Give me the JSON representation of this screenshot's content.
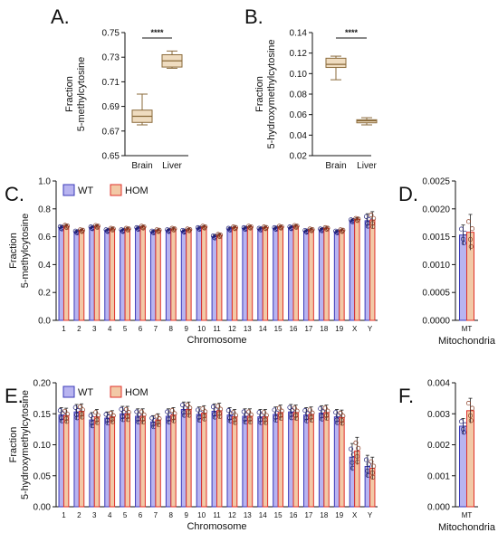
{
  "colors": {
    "wt_fill": "#b8b4f0",
    "wt_edge": "#3a3ab8",
    "hom_fill": "#f2c9a6",
    "hom_edge": "#e0302a",
    "box_fill": "#efdcc0",
    "box_edge": "#8a6a3a",
    "axis": "#111111"
  },
  "chart_data": [
    {
      "panel": "A.",
      "type": "box",
      "ylabel_lines": [
        "Fraction",
        "5-methylcytosine"
      ],
      "ylim": [
        0.65,
        0.75
      ],
      "yticks": [
        0.65,
        0.67,
        0.69,
        0.71,
        0.73,
        0.75
      ],
      "ytick_labels": [
        "0.65",
        "0.67",
        "0.69",
        "0.71",
        "0.73",
        "0.75"
      ],
      "categories": [
        "Brain",
        "Liver"
      ],
      "boxes": [
        {
          "min": 0.675,
          "q1": 0.677,
          "median": 0.682,
          "q3": 0.687,
          "max": 0.7
        },
        {
          "min": 0.721,
          "q1": 0.722,
          "median": 0.727,
          "q3": 0.732,
          "max": 0.735
        }
      ],
      "significance": "****"
    },
    {
      "panel": "B.",
      "type": "box",
      "ylabel_lines": [
        "Fraction",
        "5-hydroxymethylcytosine"
      ],
      "ylim": [
        0.02,
        0.14
      ],
      "yticks": [
        0.02,
        0.04,
        0.06,
        0.08,
        0.1,
        0.12,
        0.14
      ],
      "ytick_labels": [
        "0.02",
        "0.04",
        "0.06",
        "0.08",
        "0.10",
        "0.12",
        "0.14"
      ],
      "categories": [
        "Brain",
        "Liver"
      ],
      "boxes": [
        {
          "min": 0.094,
          "q1": 0.106,
          "median": 0.109,
          "q3": 0.115,
          "max": 0.117
        },
        {
          "min": 0.05,
          "q1": 0.052,
          "median": 0.054,
          "q3": 0.055,
          "max": 0.057
        }
      ],
      "significance": "****"
    },
    {
      "panel": "C.",
      "type": "bar",
      "xlabel": "Chromosome",
      "ylabel_lines": [
        "Fraction",
        "5-methylcytosine"
      ],
      "ylim": [
        0,
        1.0
      ],
      "yticks": [
        0,
        0.2,
        0.4,
        0.6,
        0.8,
        1.0
      ],
      "ytick_labels": [
        "0.0",
        "0.2",
        "0.4",
        "0.6",
        "0.8",
        "1.0"
      ],
      "legend": [
        "WT",
        "HOM"
      ],
      "categories": [
        "1",
        "2",
        "3",
        "4",
        "5",
        "6",
        "7",
        "8",
        "9",
        "10",
        "11",
        "12",
        "13",
        "14",
        "15",
        "16",
        "17",
        "18",
        "19",
        "X",
        "Y"
      ],
      "series": [
        {
          "name": "WT",
          "values": [
            0.665,
            0.635,
            0.665,
            0.645,
            0.645,
            0.66,
            0.635,
            0.645,
            0.64,
            0.66,
            0.6,
            0.655,
            0.66,
            0.655,
            0.66,
            0.665,
            0.64,
            0.65,
            0.635,
            0.715,
            0.715
          ],
          "errors": [
            0.012,
            0.01,
            0.01,
            0.01,
            0.01,
            0.01,
            0.01,
            0.01,
            0.01,
            0.01,
            0.012,
            0.01,
            0.01,
            0.01,
            0.01,
            0.01,
            0.01,
            0.01,
            0.01,
            0.012,
            0.05
          ]
        },
        {
          "name": "HOM",
          "values": [
            0.675,
            0.645,
            0.675,
            0.655,
            0.655,
            0.67,
            0.645,
            0.655,
            0.65,
            0.67,
            0.61,
            0.665,
            0.67,
            0.665,
            0.67,
            0.675,
            0.65,
            0.66,
            0.645,
            0.725,
            0.72
          ],
          "errors": [
            0.012,
            0.01,
            0.01,
            0.01,
            0.01,
            0.01,
            0.01,
            0.01,
            0.01,
            0.01,
            0.012,
            0.01,
            0.01,
            0.01,
            0.01,
            0.01,
            0.01,
            0.01,
            0.01,
            0.012,
            0.06
          ]
        }
      ]
    },
    {
      "panel": "D.",
      "type": "bar",
      "xlabel": "Mitochondria",
      "ylim": [
        0,
        0.0025
      ],
      "yticks": [
        0,
        0.0005,
        0.001,
        0.0015,
        0.002,
        0.0025
      ],
      "ytick_labels": [
        "0.0000",
        "0.0005",
        "0.0010",
        "0.0015",
        "0.0020",
        "0.0025"
      ],
      "categories": [
        "MT"
      ],
      "series": [
        {
          "name": "WT",
          "values": [
            0.00153
          ],
          "errors": [
            0.00018
          ]
        },
        {
          "name": "HOM",
          "values": [
            0.00158
          ],
          "errors": [
            0.00032
          ]
        }
      ]
    },
    {
      "panel": "E.",
      "type": "bar",
      "xlabel": "Chromosome",
      "ylabel_lines": [
        "Fraction",
        "5-hydroxymethylcytosine"
      ],
      "ylim": [
        0,
        0.2
      ],
      "yticks": [
        0,
        0.05,
        0.1,
        0.15,
        0.2
      ],
      "ytick_labels": [
        "0.00",
        "0.05",
        "0.10",
        "0.15",
        "0.20"
      ],
      "legend": [
        "WT",
        "HOM"
      ],
      "categories": [
        "1",
        "2",
        "3",
        "4",
        "5",
        "6",
        "7",
        "8",
        "9",
        "10",
        "11",
        "12",
        "13",
        "14",
        "15",
        "16",
        "17",
        "18",
        "19",
        "X",
        "Y"
      ],
      "series": [
        {
          "name": "WT",
          "values": [
            0.148,
            0.153,
            0.14,
            0.143,
            0.15,
            0.146,
            0.137,
            0.146,
            0.157,
            0.149,
            0.154,
            0.148,
            0.146,
            0.145,
            0.149,
            0.153,
            0.148,
            0.151,
            0.145,
            0.08,
            0.065
          ],
          "errors": [
            0.012,
            0.012,
            0.012,
            0.01,
            0.012,
            0.012,
            0.01,
            0.012,
            0.012,
            0.012,
            0.012,
            0.012,
            0.012,
            0.012,
            0.012,
            0.012,
            0.012,
            0.012,
            0.012,
            0.022,
            0.018
          ]
        },
        {
          "name": "HOM",
          "values": [
            0.147,
            0.154,
            0.145,
            0.145,
            0.15,
            0.146,
            0.14,
            0.148,
            0.157,
            0.151,
            0.155,
            0.145,
            0.146,
            0.145,
            0.152,
            0.152,
            0.149,
            0.152,
            0.144,
            0.09,
            0.062
          ],
          "errors": [
            0.012,
            0.012,
            0.012,
            0.01,
            0.012,
            0.012,
            0.01,
            0.012,
            0.012,
            0.012,
            0.012,
            0.012,
            0.012,
            0.012,
            0.012,
            0.012,
            0.012,
            0.012,
            0.012,
            0.022,
            0.018
          ]
        }
      ]
    },
    {
      "panel": "F.",
      "type": "bar",
      "xlabel": "Mitochondria",
      "ylim": [
        0,
        0.004
      ],
      "yticks": [
        0,
        0.001,
        0.002,
        0.003,
        0.004
      ],
      "ytick_labels": [
        "0.000",
        "0.001",
        "0.002",
        "0.003",
        "0.004"
      ],
      "categories": [
        "MT"
      ],
      "series": [
        {
          "name": "WT",
          "values": [
            0.0026
          ],
          "errors": [
            0.00025
          ]
        },
        {
          "name": "HOM",
          "values": [
            0.0031
          ],
          "errors": [
            0.0004
          ]
        }
      ]
    }
  ]
}
